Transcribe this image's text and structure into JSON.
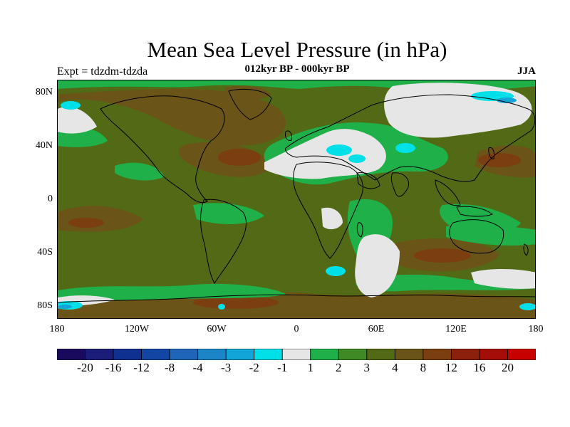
{
  "title": "Mean Sea Level Pressure (in hPa)",
  "subtitle": "012kyr BP - 000kyr BP",
  "experiment_label": "Expt = tdzdm-tdzda",
  "season_label": "JJA",
  "lat_ticks": [
    "80N",
    "40N",
    "0",
    "40S",
    "80S"
  ],
  "lon_ticks": [
    "180",
    "120W",
    "60W",
    "0",
    "60E",
    "120E",
    "180"
  ],
  "colorbar": {
    "labels": [
      "-20",
      "-16",
      "-12",
      "-8",
      "-4",
      "-3",
      "-2",
      "-1",
      "1",
      "2",
      "3",
      "4",
      "8",
      "12",
      "16",
      "20"
    ],
    "colors": [
      "#1a0a5e",
      "#1c1c7a",
      "#0f2f91",
      "#1346a4",
      "#1f66bb",
      "#1b86c7",
      "#12a6d7",
      "#00e0e8",
      "#e6e6e6",
      "#1fb04a",
      "#3f8a24",
      "#526a16",
      "#6a5418",
      "#7a3e10",
      "#8c200c",
      "#a50d08",
      "#c80000"
    ]
  },
  "legend": {
    "bins": [
      "< -20",
      "-20 to -16",
      "-16 to -12",
      "-12 to -8",
      "-8 to -4",
      "-4 to -3",
      "-3 to -2",
      "-2 to -1",
      "-1 to 1",
      "1 to 2",
      "2 to 3",
      "3 to 4",
      "4 to 8",
      "8 to 12",
      "12 to 16",
      "16 to 20",
      "> 20"
    ]
  }
}
